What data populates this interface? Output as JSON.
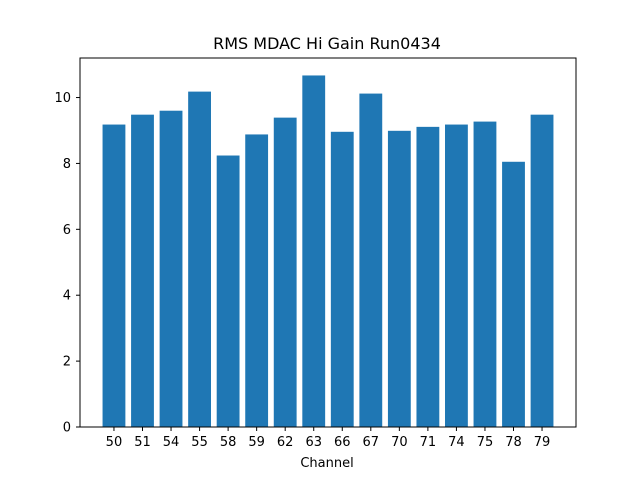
{
  "chart_data": {
    "type": "bar",
    "title": "RMS MDAC Hi Gain Run0434",
    "xlabel": "Channel",
    "ylabel": "",
    "categories": [
      "50",
      "51",
      "54",
      "55",
      "58",
      "59",
      "62",
      "63",
      "66",
      "67",
      "70",
      "71",
      "74",
      "75",
      "78",
      "79"
    ],
    "values": [
      9.18,
      9.48,
      9.6,
      10.18,
      8.24,
      8.88,
      9.39,
      10.67,
      8.96,
      10.12,
      8.99,
      9.11,
      9.18,
      9.27,
      8.05,
      9.48
    ],
    "ylim": [
      0,
      11.2
    ],
    "yticks": [
      0,
      2,
      4,
      6,
      8,
      10
    ],
    "grid": false,
    "bar_color": "#1f77b4"
  }
}
